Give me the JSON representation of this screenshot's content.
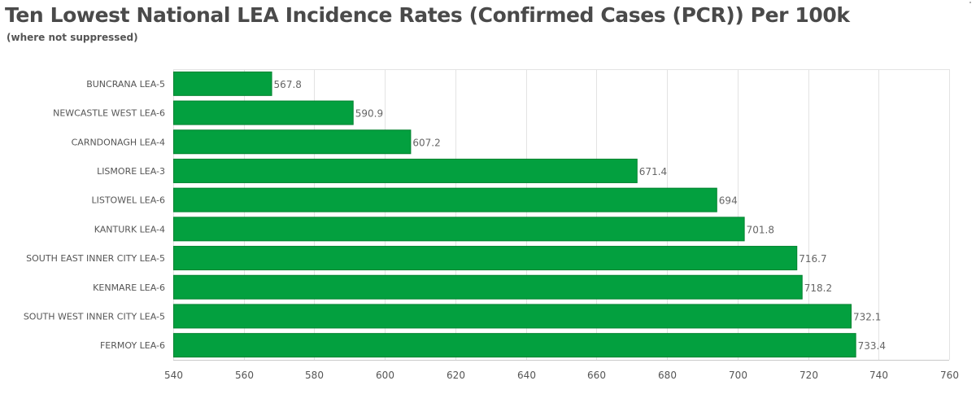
{
  "header": {
    "title": "Ten Lowest National LEA Incidence Rates (Confirmed Cases (PCR)) Per 100k",
    "subtitle": "(where not suppressed)"
  },
  "colors": {
    "bar": "#03a03f",
    "bar_edge": "#02822f",
    "grid": "#e3e3e3",
    "axis_text": "#555555",
    "value_text": "#666666"
  },
  "chart_data": {
    "type": "bar",
    "orientation": "horizontal",
    "categories": [
      "BUNCRANA LEA-5",
      "NEWCASTLE WEST LEA-6",
      "CARNDONAGH LEA-4",
      "LISMORE LEA-3",
      "LISTOWEL LEA-6",
      "KANTURK LEA-4",
      "SOUTH EAST INNER CITY LEA-5",
      "KENMARE LEA-6",
      "SOUTH WEST INNER CITY LEA-5",
      "FERMOY LEA-6"
    ],
    "values": [
      567.8,
      590.9,
      607.2,
      671.4,
      694,
      701.8,
      716.7,
      718.2,
      732.1,
      733.4
    ],
    "value_labels": [
      "567.8",
      "590.9",
      "607.2",
      "671.4",
      "694",
      "701.8",
      "716.7",
      "718.2",
      "732.1",
      "733.4"
    ],
    "xlim": [
      540,
      760
    ],
    "xticks": [
      540,
      560,
      580,
      600,
      620,
      640,
      660,
      680,
      700,
      720,
      740,
      760
    ],
    "xtick_labels": [
      "540",
      "560",
      "580",
      "600",
      "620",
      "640",
      "660",
      "680",
      "700",
      "720",
      "740",
      "760"
    ],
    "grid": true,
    "legend": "none"
  }
}
